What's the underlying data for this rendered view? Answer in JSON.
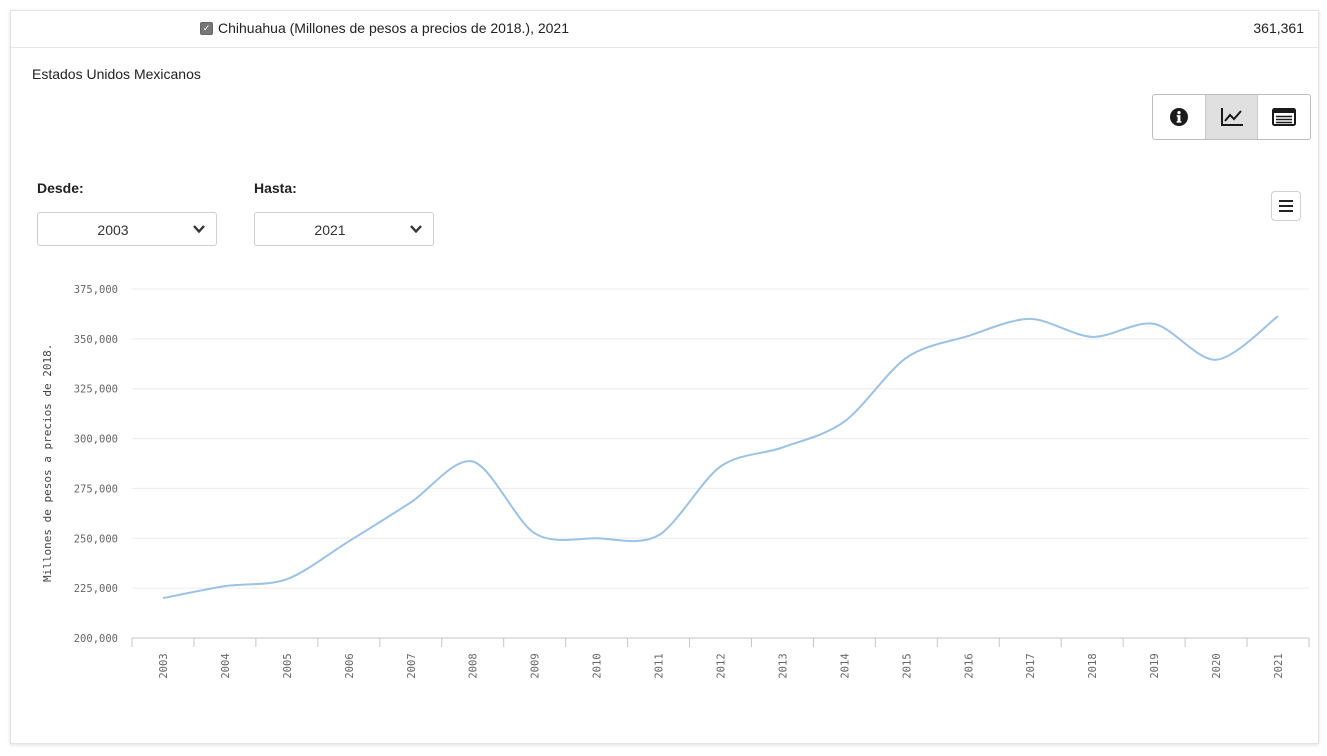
{
  "header": {
    "series_label": "Chihuahua (Millones de pesos a precios de 2018.), 2021",
    "series_value": "361,361"
  },
  "region_title": "Estados Unidos Mexicanos",
  "toolbar": {
    "buttons": [
      {
        "name": "info",
        "icon": "info-icon"
      },
      {
        "name": "chart",
        "icon": "line-chart-icon",
        "active": true
      },
      {
        "name": "table",
        "icon": "table-icon"
      }
    ]
  },
  "filters": {
    "from_label": "Desde:",
    "from_value": "2003",
    "to_label": "Hasta:",
    "to_value": "2021"
  },
  "colors": {
    "line": "#9cc2e5",
    "grid": "#ececec",
    "axis_text": "#666666"
  },
  "chart_data": {
    "type": "line",
    "title": "",
    "xlabel": "",
    "ylabel": "Millones de pesos a precios de 2018.",
    "ylim": [
      200000,
      375000
    ],
    "yticks": [
      200000,
      225000,
      250000,
      275000,
      300000,
      325000,
      350000,
      375000
    ],
    "ytick_labels": [
      "200,000",
      "225,000",
      "250,000",
      "275,000",
      "300,000",
      "325,000",
      "350,000",
      "375,000"
    ],
    "categories": [
      "2003",
      "2004",
      "2005",
      "2006",
      "2007",
      "2008",
      "2009",
      "2010",
      "2011",
      "2012",
      "2013",
      "2014",
      "2015",
      "2016",
      "2017",
      "2018",
      "2019",
      "2020",
      "2021"
    ],
    "series": [
      {
        "values": [
          220000,
          226000,
          229500,
          248500,
          268000,
          288500,
          252500,
          250000,
          251500,
          286000,
          295500,
          308500,
          340500,
          351500,
          360000,
          351000,
          357500,
          339500,
          361361
        ]
      }
    ],
    "grid": true,
    "legend": "none"
  }
}
